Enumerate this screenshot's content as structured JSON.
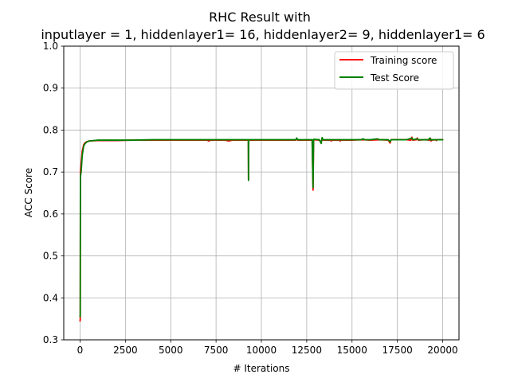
{
  "chart_data": {
    "type": "line",
    "title_line1": "RHC Result with",
    "title_line2": "inputlayer = 1, hiddenlayer1= 16, hiddenlayer2= 9, hiddenlayer1= 6",
    "xlabel": "# Iterations",
    "ylabel": "ACC Score",
    "xlim": [
      -900,
      20900
    ],
    "ylim": [
      0.3,
      1.0
    ],
    "xticks": [
      0,
      2500,
      5000,
      7500,
      10000,
      12500,
      15000,
      17500,
      20000
    ],
    "xtick_labels": [
      "0",
      "2500",
      "5000",
      "7500",
      "10000",
      "12500",
      "15000",
      "17500",
      "20000"
    ],
    "yticks": [
      0.3,
      0.4,
      0.5,
      0.6,
      0.7,
      0.8,
      0.9,
      1.0
    ],
    "ytick_labels": [
      "0.3",
      "0.4",
      "0.5",
      "0.6",
      "0.7",
      "0.8",
      "0.9",
      "1.0"
    ],
    "grid": true,
    "legend_position": "top-right",
    "series": [
      {
        "name": "Training score",
        "color": "#ff0000",
        "points": [
          [
            0,
            0.345
          ],
          [
            10,
            0.35
          ],
          [
            20,
            0.7
          ],
          [
            60,
            0.72
          ],
          [
            120,
            0.75
          ],
          [
            200,
            0.765
          ],
          [
            280,
            0.77
          ],
          [
            350,
            0.772
          ],
          [
            500,
            0.774
          ],
          [
            1000,
            0.775
          ],
          [
            2000,
            0.775
          ],
          [
            3000,
            0.776
          ],
          [
            4000,
            0.776
          ],
          [
            5000,
            0.776
          ],
          [
            6000,
            0.776
          ],
          [
            7000,
            0.776
          ],
          [
            7100,
            0.774
          ],
          [
            7200,
            0.776
          ],
          [
            8000,
            0.776
          ],
          [
            8200,
            0.774
          ],
          [
            8400,
            0.776
          ],
          [
            9000,
            0.776
          ],
          [
            9280,
            0.776
          ],
          [
            9290,
            0.682
          ],
          [
            9300,
            0.776
          ],
          [
            10000,
            0.776
          ],
          [
            11000,
            0.776
          ],
          [
            11900,
            0.776
          ],
          [
            11950,
            0.779
          ],
          [
            12000,
            0.776
          ],
          [
            12800,
            0.776
          ],
          [
            12850,
            0.657
          ],
          [
            12880,
            0.777
          ],
          [
            13200,
            0.776
          ],
          [
            13300,
            0.771
          ],
          [
            13350,
            0.779
          ],
          [
            13400,
            0.776
          ],
          [
            13800,
            0.776
          ],
          [
            13850,
            0.774
          ],
          [
            13900,
            0.776
          ],
          [
            14300,
            0.776
          ],
          [
            14350,
            0.774
          ],
          [
            14400,
            0.776
          ],
          [
            15000,
            0.776
          ],
          [
            15600,
            0.777
          ],
          [
            16000,
            0.776
          ],
          [
            16500,
            0.777
          ],
          [
            17000,
            0.776
          ],
          [
            17100,
            0.769
          ],
          [
            17150,
            0.777
          ],
          [
            18000,
            0.777
          ],
          [
            18250,
            0.776
          ],
          [
            18300,
            0.783
          ],
          [
            18350,
            0.776
          ],
          [
            18550,
            0.777
          ],
          [
            18600,
            0.781
          ],
          [
            18650,
            0.776
          ],
          [
            19000,
            0.777
          ],
          [
            19300,
            0.776
          ],
          [
            19330,
            0.78
          ],
          [
            19360,
            0.774
          ],
          [
            19400,
            0.776
          ],
          [
            19600,
            0.777
          ],
          [
            19650,
            0.775
          ],
          [
            19700,
            0.777
          ],
          [
            20000,
            0.777
          ]
        ]
      },
      {
        "name": "Test Score",
        "color": "#008000",
        "points": [
          [
            0,
            0.355
          ],
          [
            10,
            0.36
          ],
          [
            20,
            0.69
          ],
          [
            60,
            0.7
          ],
          [
            120,
            0.74
          ],
          [
            200,
            0.762
          ],
          [
            280,
            0.768
          ],
          [
            350,
            0.771
          ],
          [
            500,
            0.774
          ],
          [
            1000,
            0.776
          ],
          [
            2000,
            0.776
          ],
          [
            3000,
            0.776
          ],
          [
            4000,
            0.777
          ],
          [
            5000,
            0.777
          ],
          [
            6000,
            0.777
          ],
          [
            7000,
            0.777
          ],
          [
            8000,
            0.777
          ],
          [
            9000,
            0.777
          ],
          [
            9280,
            0.777
          ],
          [
            9290,
            0.68
          ],
          [
            9300,
            0.777
          ],
          [
            10000,
            0.777
          ],
          [
            11000,
            0.777
          ],
          [
            11900,
            0.777
          ],
          [
            11950,
            0.781
          ],
          [
            12000,
            0.777
          ],
          [
            12800,
            0.777
          ],
          [
            12850,
            0.663
          ],
          [
            12880,
            0.778
          ],
          [
            13200,
            0.777
          ],
          [
            13300,
            0.768
          ],
          [
            13350,
            0.782
          ],
          [
            13400,
            0.777
          ],
          [
            14000,
            0.777
          ],
          [
            15000,
            0.777
          ],
          [
            15500,
            0.777
          ],
          [
            15600,
            0.779
          ],
          [
            15700,
            0.777
          ],
          [
            16000,
            0.777
          ],
          [
            16400,
            0.779
          ],
          [
            16500,
            0.777
          ],
          [
            17000,
            0.777
          ],
          [
            17100,
            0.772
          ],
          [
            17150,
            0.777
          ],
          [
            18000,
            0.777
          ],
          [
            18300,
            0.781
          ],
          [
            18350,
            0.777
          ],
          [
            18600,
            0.779
          ],
          [
            18650,
            0.777
          ],
          [
            19200,
            0.777
          ],
          [
            19300,
            0.781
          ],
          [
            19350,
            0.776
          ],
          [
            19400,
            0.777
          ],
          [
            20000,
            0.777
          ]
        ]
      }
    ]
  }
}
